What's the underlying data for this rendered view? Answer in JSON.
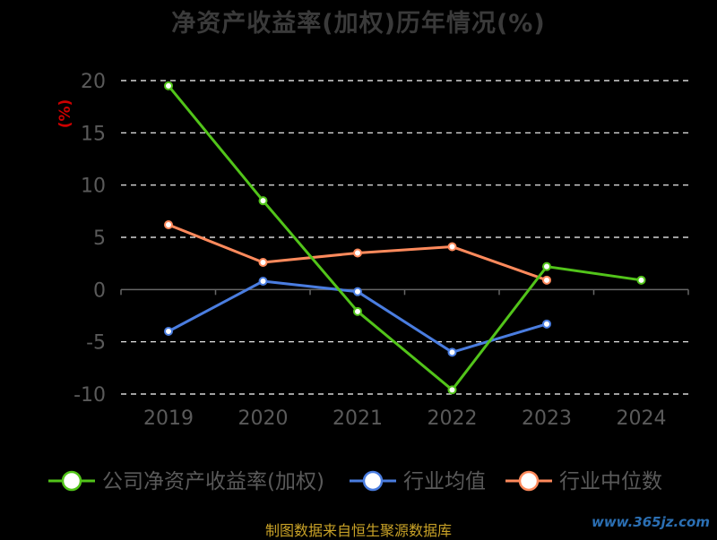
{
  "colors": {
    "background": "#000000",
    "grid": "#ffffff",
    "axis": "#666666",
    "tick_label": "#5a5a5a",
    "ylabel": "#cc0000",
    "source": "#c9a227",
    "watermark": "#2b6fb3"
  },
  "source_note": "制图数据来自恒生聚源数据库",
  "watermark": "www.365jz.com",
  "chart_data": {
    "type": "line",
    "title": "净资产收益率(加权)历年情况(%)",
    "xlabel": "",
    "ylabel": "(%)",
    "categories": [
      "2019",
      "2020",
      "2021",
      "2022",
      "2023",
      "2024"
    ],
    "ylim": [
      -10,
      20
    ],
    "yticks": [
      20,
      15,
      10,
      5,
      0,
      -5,
      -10
    ],
    "grid": true,
    "legend_position": "bottom",
    "series": [
      {
        "name": "公司净资产收益率(加权)",
        "color": "#52c41a",
        "values": [
          19.5,
          8.5,
          -2.1,
          -9.6,
          2.2,
          0.9
        ]
      },
      {
        "name": "行业均值",
        "color": "#4a7de0",
        "values": [
          -4.0,
          0.8,
          -0.2,
          -6.0,
          -3.3,
          null
        ]
      },
      {
        "name": "行业中位数",
        "color": "#ff8a5c",
        "values": [
          6.2,
          2.6,
          3.5,
          4.1,
          0.9,
          null
        ]
      }
    ]
  }
}
